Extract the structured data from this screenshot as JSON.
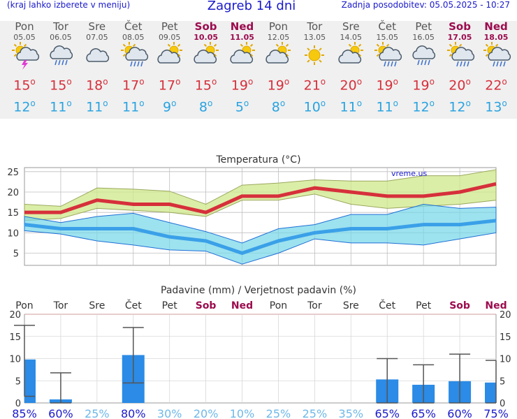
{
  "header": {
    "menu_note": "(kraj lahko izberete v meniju)",
    "title": "Zagreb 14 dni",
    "updated": "Zadnja posodobitev: 05.05.2025 - 10:27"
  },
  "colors": {
    "max": "#d6303b",
    "min": "#2aa3e0",
    "weekend": "#9c0b4e",
    "bar": "#2b8be6"
  },
  "days": [
    {
      "name": "Pon",
      "date": "05.05",
      "icon": "storm-sun-icon",
      "max": "15",
      "min": "12",
      "weekend": false
    },
    {
      "name": "Tor",
      "date": "06.05",
      "icon": "rain-cloud-icon",
      "max": "15",
      "min": "11",
      "weekend": false
    },
    {
      "name": "Sre",
      "date": "07.05",
      "icon": "cloud-icon",
      "max": "18",
      "min": "11",
      "weekend": false
    },
    {
      "name": "Čet",
      "date": "08.05",
      "icon": "sun-rain-icon",
      "max": "17",
      "min": "11",
      "weekend": false
    },
    {
      "name": "Pet",
      "date": "09.05",
      "icon": "partly-cloudy-icon",
      "max": "17",
      "min": "9",
      "weekend": false
    },
    {
      "name": "Sob",
      "date": "10.05",
      "icon": "partly-cloudy-icon",
      "max": "15",
      "min": "8",
      "weekend": true
    },
    {
      "name": "Ned",
      "date": "11.05",
      "icon": "partly-cloudy-icon",
      "max": "19",
      "min": "5",
      "weekend": true
    },
    {
      "name": "Pon",
      "date": "12.05",
      "icon": "partly-cloudy-icon",
      "max": "19",
      "min": "8",
      "weekend": false
    },
    {
      "name": "Tor",
      "date": "13.05",
      "icon": "sun-icon",
      "max": "21",
      "min": "10",
      "weekend": false
    },
    {
      "name": "Sre",
      "date": "14.05",
      "icon": "partly-cloudy-icon",
      "max": "20",
      "min": "11",
      "weekend": false
    },
    {
      "name": "Čet",
      "date": "15.05",
      "icon": "sun-rain-icon",
      "max": "19",
      "min": "11",
      "weekend": false
    },
    {
      "name": "Pet",
      "date": "16.05",
      "icon": "rain-cloud-icon",
      "max": "19",
      "min": "12",
      "weekend": false
    },
    {
      "name": "Sob",
      "date": "17.05",
      "icon": "sun-rain-icon",
      "max": "20",
      "min": "12",
      "weekend": true
    },
    {
      "name": "Ned",
      "date": "18.05",
      "icon": "sun-rain-icon",
      "max": "22",
      "min": "13",
      "weekend": true
    }
  ],
  "chart_data": [
    {
      "type": "line",
      "title": "Temperatura (°C)",
      "watermark": "vreme.us",
      "categories": [
        "Pon",
        "Tor",
        "Sre",
        "Čet",
        "Pet",
        "Sob",
        "Ned",
        "Pon",
        "Tor",
        "Sre",
        "Čet",
        "Pet",
        "Sob",
        "Ned"
      ],
      "ylim": [
        2,
        26
      ],
      "yticks": [
        5,
        10,
        15,
        20,
        25
      ],
      "grid": true,
      "series": [
        {
          "values": [
            15,
            15,
            18,
            17,
            17,
            15,
            19,
            19,
            21,
            20,
            19,
            19,
            20,
            22
          ],
          "band_low": [
            13,
            13.5,
            16,
            15.5,
            15,
            14,
            18,
            18,
            19.5,
            17,
            16,
            16.5,
            17,
            18
          ],
          "band_high": [
            17,
            16.5,
            21,
            20.7,
            20.2,
            17,
            21.7,
            22.2,
            23,
            22.7,
            22.7,
            24,
            24,
            25.5
          ]
        },
        {
          "values": [
            12,
            11,
            11,
            11,
            9,
            8,
            5,
            8,
            10,
            11,
            11,
            12,
            12,
            13
          ],
          "band_low": [
            10.5,
            9.7,
            8,
            7,
            5.8,
            5.5,
            2.3,
            5,
            8.5,
            7.5,
            7.5,
            7,
            8.5,
            10
          ],
          "band_high": [
            14,
            12.5,
            14,
            14.8,
            12.5,
            10.3,
            7.5,
            11,
            12,
            14.5,
            14.5,
            17,
            16,
            16.3
          ]
        }
      ]
    },
    {
      "type": "bar",
      "title": "Padavine (mm) / Verjetnost padavin (%)",
      "categories": [
        "Pon",
        "Tor",
        "Sre",
        "Čet",
        "Pet",
        "Sob",
        "Ned",
        "Pon",
        "Tor",
        "Sre",
        "Čet",
        "Pet",
        "Sob",
        "Ned"
      ],
      "ylim": [
        0,
        20
      ],
      "yticks": [
        0,
        5,
        10,
        15,
        20
      ],
      "values": [
        9.8,
        0.8,
        0,
        10.8,
        0,
        0,
        0,
        0,
        0,
        0,
        5.3,
        4.1,
        4.9,
        4.6
      ],
      "err_low": [
        1.5,
        0,
        0,
        4.5,
        0,
        0,
        0,
        0,
        0,
        0,
        0,
        0,
        0,
        0
      ],
      "err_high": [
        17.5,
        6.8,
        0,
        17,
        0,
        0,
        0,
        0,
        0,
        0,
        10,
        8.6,
        11,
        9.6
      ],
      "probability": [
        "85%",
        "60%",
        "25%",
        "80%",
        "30%",
        "20%",
        "10%",
        "25%",
        "25%",
        "35%",
        "65%",
        "65%",
        "60%",
        "75%"
      ]
    }
  ]
}
